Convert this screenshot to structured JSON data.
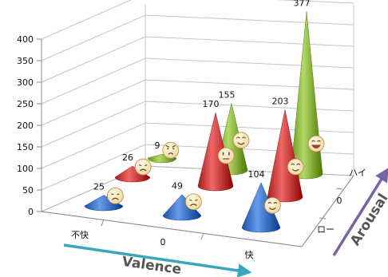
{
  "chart_data": {
    "type": "bar",
    "mark_shape": "cone",
    "zlim": [
      0,
      400
    ],
    "z_ticks": [
      0,
      50,
      100,
      150,
      200,
      250,
      300,
      350,
      400
    ],
    "valence_labels": [
      "不快",
      "0",
      "快"
    ],
    "arousal_labels": [
      "ロー",
      "0",
      "ハイ"
    ],
    "xlabel": "Valence",
    "ylabel": "Arousal",
    "grid": true,
    "points": [
      {
        "valence": "不快",
        "arousal": "ロー",
        "value": 25,
        "color": "#3a6fc0",
        "emoji": "sad-face-icon"
      },
      {
        "valence": "不快",
        "arousal": "0",
        "value": 26,
        "color": "#c23a3a",
        "emoji": "sad-face-icon"
      },
      {
        "valence": "不快",
        "arousal": "ハイ",
        "value": 9,
        "color": "#86ad3c",
        "emoji": "angry-face-icon"
      },
      {
        "valence": "0",
        "arousal": "ロー",
        "value": 49,
        "color": "#3a6fc0",
        "emoji": "disappointed-face-icon"
      },
      {
        "valence": "0",
        "arousal": "0",
        "value": 170,
        "color": "#c23a3a",
        "emoji": "neutral-face-icon"
      },
      {
        "valence": "0",
        "arousal": "ハイ",
        "value": 155,
        "color": "#86ad3c",
        "emoji": "smiling-face-icon"
      },
      {
        "valence": "快",
        "arousal": "ロー",
        "value": 104,
        "color": "#3a6fc0",
        "emoji": "content-face-icon"
      },
      {
        "valence": "快",
        "arousal": "0",
        "value": 203,
        "color": "#c23a3a",
        "emoji": "happy-face-icon"
      },
      {
        "valence": "快",
        "arousal": "ハイ",
        "value": 377,
        "color": "#86ad3c",
        "emoji": "grinning-face-icon"
      }
    ]
  }
}
